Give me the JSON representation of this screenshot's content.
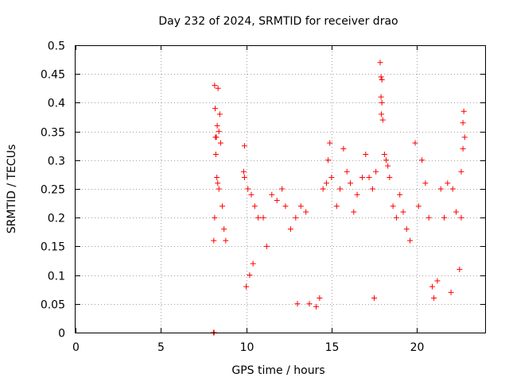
{
  "chart_data": {
    "type": "scatter",
    "title": "Day 232 of 2024, SRMTID for receiver drao",
    "xlabel": "GPS time / hours",
    "ylabel": "SRMTID / TECUs",
    "xlim": [
      0,
      24
    ],
    "ylim": [
      0,
      0.5
    ],
    "xticks": [
      0,
      5,
      10,
      15,
      20
    ],
    "xtick_labels": [
      "0",
      "5",
      "10",
      "15",
      "20"
    ],
    "yticks": [
      0,
      0.05,
      0.1,
      0.15,
      0.2,
      0.25,
      0.3,
      0.35,
      0.4,
      0.45,
      0.5
    ],
    "ytick_labels": [
      "0",
      "0.05",
      "0.1",
      "0.15",
      "0.2",
      "0.25",
      "0.3",
      "0.35",
      "0.4",
      "0.45",
      "0.5"
    ],
    "grid": true,
    "marker": "+",
    "color": "#ff0000",
    "series": [
      {
        "name": "SRMTID",
        "points": [
          [
            8.08,
            0.0
          ],
          [
            8.12,
            0.0
          ],
          [
            8.15,
            0.43
          ],
          [
            8.35,
            0.425
          ],
          [
            8.18,
            0.39
          ],
          [
            8.45,
            0.38
          ],
          [
            8.2,
            0.34
          ],
          [
            8.4,
            0.35
          ],
          [
            8.3,
            0.36
          ],
          [
            8.25,
            0.34
          ],
          [
            8.5,
            0.33
          ],
          [
            8.1,
            0.16
          ],
          [
            8.22,
            0.31
          ],
          [
            8.28,
            0.27
          ],
          [
            8.33,
            0.26
          ],
          [
            8.4,
            0.25
          ],
          [
            8.15,
            0.2
          ],
          [
            8.6,
            0.22
          ],
          [
            8.7,
            0.18
          ],
          [
            8.8,
            0.16
          ],
          [
            9.9,
            0.325
          ],
          [
            9.85,
            0.28
          ],
          [
            9.9,
            0.27
          ],
          [
            10.1,
            0.25
          ],
          [
            10.3,
            0.24
          ],
          [
            10.5,
            0.22
          ],
          [
            10.7,
            0.2
          ],
          [
            10.2,
            0.1
          ],
          [
            10.0,
            0.08
          ],
          [
            10.4,
            0.12
          ],
          [
            11.0,
            0.2
          ],
          [
            11.2,
            0.15
          ],
          [
            11.5,
            0.24
          ],
          [
            11.8,
            0.23
          ],
          [
            12.1,
            0.25
          ],
          [
            12.3,
            0.22
          ],
          [
            12.6,
            0.18
          ],
          [
            12.9,
            0.2
          ],
          [
            13.2,
            0.22
          ],
          [
            13.5,
            0.21
          ],
          [
            13.0,
            0.05
          ],
          [
            13.7,
            0.05
          ],
          [
            14.1,
            0.045
          ],
          [
            14.3,
            0.06
          ],
          [
            14.5,
            0.25
          ],
          [
            14.7,
            0.26
          ],
          [
            14.9,
            0.33
          ],
          [
            14.8,
            0.3
          ],
          [
            15.0,
            0.27
          ],
          [
            15.3,
            0.22
          ],
          [
            15.5,
            0.25
          ],
          [
            15.7,
            0.32
          ],
          [
            15.9,
            0.28
          ],
          [
            16.1,
            0.26
          ],
          [
            16.3,
            0.21
          ],
          [
            16.5,
            0.24
          ],
          [
            16.8,
            0.27
          ],
          [
            17.0,
            0.31
          ],
          [
            17.2,
            0.27
          ],
          [
            17.4,
            0.25
          ],
          [
            17.5,
            0.06
          ],
          [
            17.6,
            0.28
          ],
          [
            17.85,
            0.47
          ],
          [
            17.9,
            0.445
          ],
          [
            17.95,
            0.44
          ],
          [
            17.9,
            0.41
          ],
          [
            17.95,
            0.4
          ],
          [
            17.92,
            0.38
          ],
          [
            18.0,
            0.37
          ],
          [
            18.1,
            0.31
          ],
          [
            18.2,
            0.3
          ],
          [
            18.3,
            0.29
          ],
          [
            18.4,
            0.27
          ],
          [
            18.6,
            0.22
          ],
          [
            18.8,
            0.2
          ],
          [
            19.0,
            0.24
          ],
          [
            19.2,
            0.21
          ],
          [
            19.4,
            0.18
          ],
          [
            19.6,
            0.16
          ],
          [
            19.9,
            0.33
          ],
          [
            20.1,
            0.22
          ],
          [
            20.3,
            0.3
          ],
          [
            20.5,
            0.26
          ],
          [
            20.7,
            0.2
          ],
          [
            20.9,
            0.08
          ],
          [
            21.0,
            0.06
          ],
          [
            21.2,
            0.09
          ],
          [
            21.4,
            0.25
          ],
          [
            21.6,
            0.2
          ],
          [
            21.8,
            0.26
          ],
          [
            22.0,
            0.07
          ],
          [
            22.1,
            0.25
          ],
          [
            22.3,
            0.21
          ],
          [
            22.6,
            0.28
          ],
          [
            22.7,
            0.32
          ],
          [
            22.75,
            0.385
          ],
          [
            22.7,
            0.365
          ],
          [
            22.8,
            0.34
          ],
          [
            22.6,
            0.2
          ],
          [
            22.5,
            0.11
          ]
        ]
      }
    ]
  }
}
